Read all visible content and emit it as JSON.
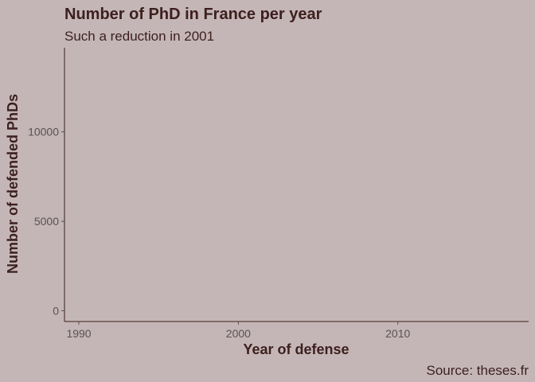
{
  "colors": {
    "background": "#c4b6b6",
    "title_text": "#3d1f1f",
    "tick_text": "#5a5252",
    "axis_line": "#3d1f1f",
    "tick_mark": "#5a5252"
  },
  "chart_data": {
    "type": "line",
    "title": "Number of PhD in France per year",
    "subtitle": "Such a reduction in 2001",
    "xlabel": "Year of defense",
    "ylabel": "Number of defended PhDs",
    "caption": "Source: theses.fr",
    "xlim": [
      1989.1,
      2018.2
    ],
    "ylim": [
      -600,
      14700
    ],
    "x_ticks": [
      1990,
      2000,
      2010
    ],
    "y_ticks": [
      0,
      5000,
      10000
    ],
    "x_tick_labels": [
      "1990",
      "2000",
      "2010"
    ],
    "y_tick_labels": [
      "0",
      "5000",
      "10000"
    ],
    "grid": false,
    "series": []
  }
}
